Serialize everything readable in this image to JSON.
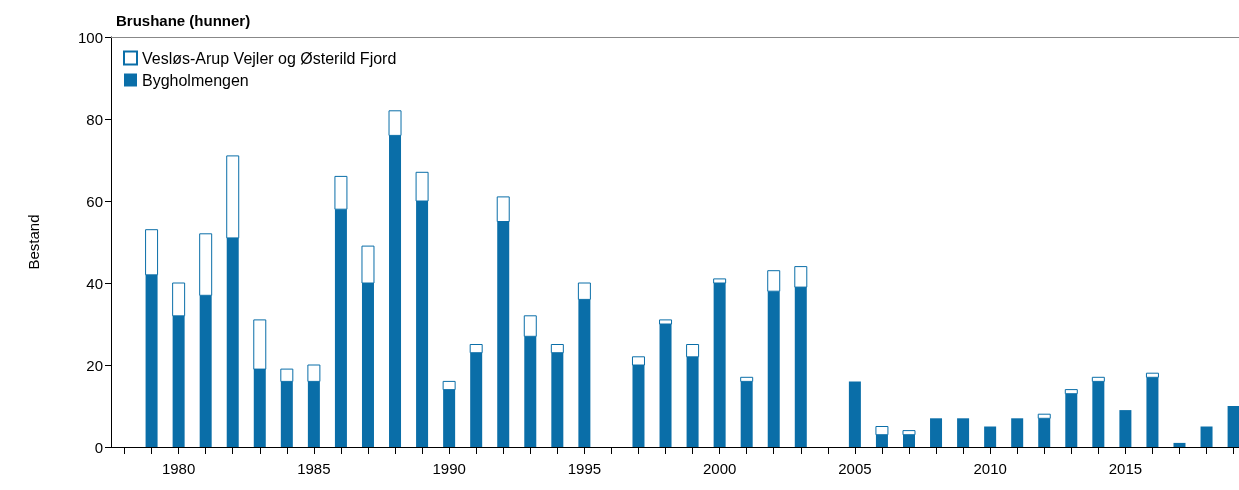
{
  "chart_data": {
    "type": "bar",
    "stacked": true,
    "title": "Brushane (hunner)",
    "ylabel": "Bestand",
    "x": [
      1979,
      1980,
      1981,
      1982,
      1983,
      1984,
      1985,
      1986,
      1987,
      1988,
      1989,
      1990,
      1991,
      1992,
      1993,
      1994,
      1995,
      1996,
      1997,
      1998,
      1999,
      2000,
      2001,
      2002,
      2003,
      2004,
      2005,
      2006,
      2007,
      2008,
      2009,
      2010,
      2011,
      2012,
      2013,
      2014,
      2015,
      2016,
      2017,
      2018,
      2019
    ],
    "series": [
      {
        "name": "Bygholmengen",
        "color": "#0a6ea8",
        "values": [
          42,
          32,
          37,
          51,
          19,
          16,
          16,
          58,
          40,
          76,
          60,
          14,
          23,
          55,
          27,
          23,
          36,
          null,
          20,
          30,
          22,
          40,
          16,
          38,
          39,
          null,
          16,
          3,
          3,
          7,
          7,
          5,
          7,
          7,
          13,
          16,
          9,
          17,
          1,
          5,
          10
        ]
      },
      {
        "name": "Vesløs-Arup Vejler og Østerild Fjord",
        "color": "#ffffff",
        "values": [
          11,
          8,
          15,
          20,
          12,
          3,
          4,
          8,
          9,
          6,
          7,
          2,
          2,
          6,
          5,
          2,
          4,
          null,
          2,
          1,
          3,
          1,
          1,
          5,
          5,
          null,
          null,
          2,
          1,
          null,
          null,
          null,
          null,
          1,
          1,
          1,
          null,
          1,
          null,
          null,
          null
        ]
      }
    ],
    "xlim": [
      1977.5,
      2019.2
    ],
    "xticks": [
      {
        "value": 1978,
        "label": null
      },
      {
        "value": 1979,
        "label": null
      },
      1980,
      {
        "value": 1981,
        "label": null
      },
      {
        "value": 1982,
        "label": null
      },
      {
        "value": 1983,
        "label": null
      },
      {
        "value": 1984,
        "label": null
      },
      1985,
      {
        "value": 1986,
        "label": null
      },
      {
        "value": 1987,
        "label": null
      },
      {
        "value": 1988,
        "label": null
      },
      {
        "value": 1989,
        "label": null
      },
      1990,
      {
        "value": 1991,
        "label": null
      },
      {
        "value": 1992,
        "label": null
      },
      {
        "value": 1993,
        "label": null
      },
      {
        "value": 1994,
        "label": null
      },
      1995,
      {
        "value": 1996,
        "label": null
      },
      {
        "value": 1997,
        "label": null
      },
      {
        "value": 1998,
        "label": null
      },
      {
        "value": 1999,
        "label": null
      },
      2000,
      {
        "value": 2001,
        "label": null
      },
      {
        "value": 2002,
        "label": null
      },
      {
        "value": 2003,
        "label": null
      },
      {
        "value": 2004,
        "label": null
      },
      2005,
      {
        "value": 2006,
        "label": null
      },
      {
        "value": 2007,
        "label": null
      },
      {
        "value": 2008,
        "label": null
      },
      {
        "value": 2009,
        "label": null
      },
      2010,
      {
        "value": 2011,
        "label": null
      },
      {
        "value": 2012,
        "label": null
      },
      {
        "value": 2013,
        "label": null
      },
      {
        "value": 2014,
        "label": null
      },
      2015,
      {
        "value": 2016,
        "label": null
      },
      {
        "value": 2017,
        "label": null
      },
      {
        "value": 2018,
        "label": null
      },
      {
        "value": 2019,
        "label": null
      }
    ],
    "ylim": [
      0,
      100
    ],
    "yticks": [
      0,
      20,
      40,
      60,
      80,
      100
    ],
    "grid": false,
    "legend": "top left"
  }
}
